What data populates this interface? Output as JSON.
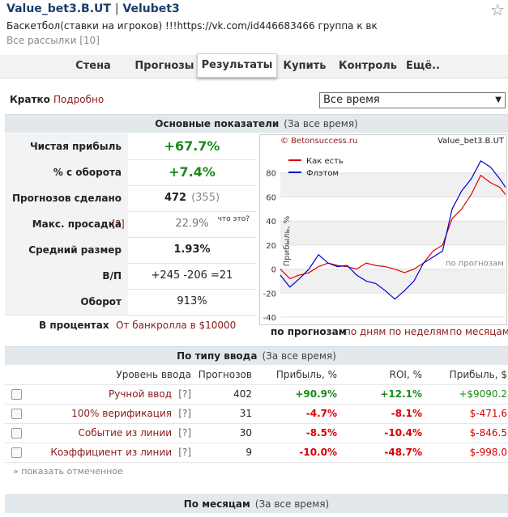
{
  "header": {
    "title": "Value_bet3.B.UT",
    "separator": "|",
    "author": "Velubet3",
    "description": "Баскетбол(ставки на игроков) !!!https://vk.com/id446683466 группа к вк",
    "all_mailings": "Все рассылки [10]",
    "star": "☆"
  },
  "tabs": [
    "Стена",
    "Прогнозы",
    "Результаты",
    "Купить",
    "Контроль",
    "Ещё.."
  ],
  "view": {
    "short": "Кратко",
    "detailed": "Подробно",
    "period": "Все время",
    "select_arrow": "▼"
  },
  "main_stats": {
    "title": "Основные показатели",
    "period": "(За все время)",
    "rows": [
      {
        "label": "Чистая прибыль",
        "value": "+67.7%"
      },
      {
        "label": "% с оборота",
        "value": "+7.4%"
      },
      {
        "label": "Прогнозов сделано",
        "value": "472",
        "extra": "(355)"
      },
      {
        "label": "Макс. просадка",
        "hint": "[?]",
        "value": "22.9%",
        "extra": "что это?"
      },
      {
        "label": "Средний размер",
        "value": "1.93%"
      },
      {
        "label": "В/П",
        "value": "+245 -206 =21"
      },
      {
        "label": "Оборот",
        "value": "913%"
      }
    ],
    "in_percent": "В процентах",
    "bankroll": "От банкролла в $10000"
  },
  "chart_data": {
    "type": "line",
    "copyright": "© Betonsuccess.ru",
    "title": "Value_bet3.B.UT",
    "y_label": "Прибыль, %",
    "annotation": "по прогнозам",
    "x": [
      0,
      20,
      40,
      60,
      80,
      100,
      120,
      140,
      160,
      180,
      200,
      220,
      240,
      260,
      280,
      300,
      320,
      340,
      360,
      380,
      400,
      420,
      440,
      460,
      472
    ],
    "series": [
      {
        "name": "Как есть",
        "color": "#e00000",
        "values": [
          0,
          -8,
          -5,
          -3,
          2,
          5,
          3,
          2,
          0,
          5,
          3,
          2,
          0,
          -3,
          0,
          5,
          15,
          20,
          42,
          50,
          62,
          78,
          72,
          68,
          62
        ]
      },
      {
        "name": "Флэтом",
        "color": "#0000cc",
        "values": [
          -5,
          -15,
          -8,
          0,
          12,
          5,
          2,
          3,
          -5,
          -10,
          -12,
          -18,
          -25,
          -18,
          -10,
          5,
          10,
          15,
          50,
          65,
          75,
          90,
          85,
          75,
          68
        ]
      }
    ],
    "xlim": [
      0,
      472
    ],
    "ylim": [
      -40,
      100
    ],
    "yticks": [
      -40,
      -20,
      0,
      20,
      40,
      60,
      80
    ],
    "grid": true,
    "legend": "upper left"
  },
  "chart_links": [
    "по прогнозам",
    "по дням",
    "по неделям",
    "по месяцам"
  ],
  "input_types": {
    "title": "По типу ввода",
    "period": "(За все время)",
    "columns": [
      "Уровень ввода",
      "Прогнозов",
      "Прибыль, %",
      "ROI, %",
      "Прибыль, $"
    ],
    "rows": [
      [
        "Ручной ввод",
        "[?]",
        "402",
        "+90.9%",
        "+12.1%",
        "+$9090.2"
      ],
      [
        "100% верификация",
        "[?]",
        "31",
        "-4.7%",
        "-8.1%",
        "$-471.6"
      ],
      [
        "Событие из линии",
        "[?]",
        "30",
        "-8.5%",
        "-10.4%",
        "$-846.5"
      ],
      [
        "Коэффициент из линии",
        "[?]",
        "9",
        "-10.0%",
        "-48.7%",
        "$-998.0"
      ]
    ],
    "show_marked": "» показать отмеченное"
  },
  "by_month": {
    "title": "По месяцам",
    "period": "(За все время)"
  }
}
